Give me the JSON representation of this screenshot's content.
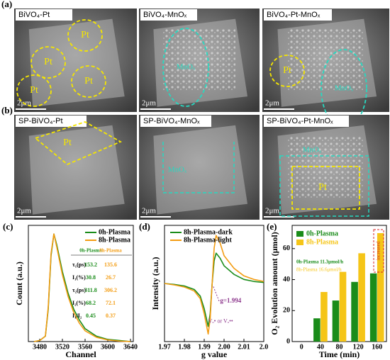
{
  "panels": [
    {
      "letter": "(a)",
      "title": "BiVO₄-Pt",
      "scale": "2μm",
      "labels": [
        "Pt",
        "Pt",
        "Pt",
        "Pt"
      ]
    },
    {
      "title": "BiVO₄-MnOₓ",
      "scale": "2μm",
      "labels": [
        "MnOₓ"
      ]
    },
    {
      "title": "BiVO₄-Pt-MnOₓ",
      "scale": "2μm",
      "labels": [
        "Pt",
        "MnOₓ"
      ]
    },
    {
      "letter": "(b)",
      "title": "SP-BiVO₄-Pt",
      "scale": "2μm",
      "labels": [
        "Pt"
      ]
    },
    {
      "title": "SP-BiVO₄-MnOₓ",
      "scale": "2μm",
      "labels": [
        "MnOₓ"
      ]
    },
    {
      "title": "SP-BiVO₄-Pt-MnOₓ",
      "scale": "2μm",
      "labels": [
        "MnOₓ",
        "Pt"
      ]
    }
  ],
  "chart_data": [
    {
      "type": "line",
      "letter": "(c)",
      "xlabel": "Channel",
      "ylabel": "Count (a.u.)",
      "xlim": [
        3460,
        3645
      ],
      "xticks": [
        3480,
        3520,
        3560,
        3600,
        3640
      ],
      "ylim": [
        0,
        1.08
      ],
      "x": [
        3470,
        3480,
        3490,
        3495,
        3500,
        3505,
        3510,
        3520,
        3530,
        3540,
        3550,
        3560,
        3580,
        3600,
        3620,
        3640
      ],
      "series": [
        {
          "name": "0h-Plasma",
          "color": "#1a8c1a",
          "values": [
            0,
            0.01,
            0.05,
            0.3,
            0.8,
            1.0,
            0.9,
            0.65,
            0.45,
            0.3,
            0.2,
            0.12,
            0.05,
            0.02,
            0.01,
            0
          ]
        },
        {
          "name": "8h-Plasma",
          "color": "#f39c12",
          "values": [
            0,
            0.01,
            0.05,
            0.32,
            0.82,
            1.0,
            0.88,
            0.62,
            0.42,
            0.27,
            0.17,
            0.1,
            0.04,
            0.015,
            0.005,
            0
          ]
        }
      ],
      "table": {
        "header": [
          "0h-Plasma",
          "8h-Plasma"
        ],
        "rows": [
          [
            "τ₁(ps)",
            "153.2",
            "135.6"
          ],
          [
            "I₁(%)",
            "30.8",
            "26.7"
          ],
          [
            "τ₂(ps)",
            "311.8",
            "306.2"
          ],
          [
            "I₂(%)",
            "68.2",
            "72.1"
          ],
          [
            "I₁/I₂",
            "0.45",
            "0.37"
          ]
        ]
      }
    },
    {
      "type": "line",
      "letter": "(d)",
      "xlabel": "g value",
      "ylabel": "Intensity (a.u.)",
      "xlim": [
        1.97,
        2.02
      ],
      "xticks": [
        1.97,
        1.98,
        1.99,
        {
          "value": 2.0,
          "label": "2.00"
        },
        2.01,
        {
          "value": 2.02,
          "label": "2.0"
        }
      ],
      "ylim": [
        -1.15,
        1.15
      ],
      "x": [
        1.97,
        1.975,
        1.98,
        1.985,
        1.988,
        1.99,
        1.992,
        1.993,
        1.994,
        1.995,
        1.996,
        1.998,
        2.0,
        2.005,
        2.01,
        2.015,
        2.02
      ],
      "series": [
        {
          "name": "8h-Plasma-dark",
          "color": "#1a8c1a",
          "values": [
            0,
            -0.02,
            -0.05,
            -0.12,
            -0.25,
            -0.5,
            -0.85,
            -0.6,
            0,
            0.45,
            0.6,
            0.5,
            0.35,
            0.18,
            0.08,
            0.04,
            0.02
          ]
        },
        {
          "name": "8h-Plasma-light",
          "color": "#f39c12",
          "values": [
            0,
            -0.03,
            -0.07,
            -0.15,
            -0.3,
            -0.6,
            -1.0,
            -0.7,
            0,
            0.7,
            0.95,
            0.8,
            0.55,
            0.3,
            0.15,
            0.08,
            0.04
          ]
        }
      ],
      "annotations": [
        "g=1.994",
        "Vₒ• or Vₒ••"
      ]
    },
    {
      "type": "bar",
      "letter": "(e)",
      "xlabel": "Time (min)",
      "ylabel": "O₂ Evolution amount (μmol)",
      "categories": [
        "0",
        "40",
        "80",
        "120",
        "160"
      ],
      "ylim": [
        0,
        75
      ],
      "yticks": [
        0,
        20,
        40,
        60
      ],
      "series": [
        {
          "name": "0h-Plasma",
          "color": "#1a8c1a",
          "values": [
            0,
            15,
            26.5,
            38.5,
            44
          ]
        },
        {
          "name": "8h-Plasma",
          "color": "#f5c518",
          "values": [
            0,
            32,
            45,
            57,
            70
          ]
        }
      ],
      "annotations": [
        "0h-Plasma 11.3μmol/h",
        "8h-Plasma 16.6μmol/h",
        "increased"
      ]
    }
  ]
}
